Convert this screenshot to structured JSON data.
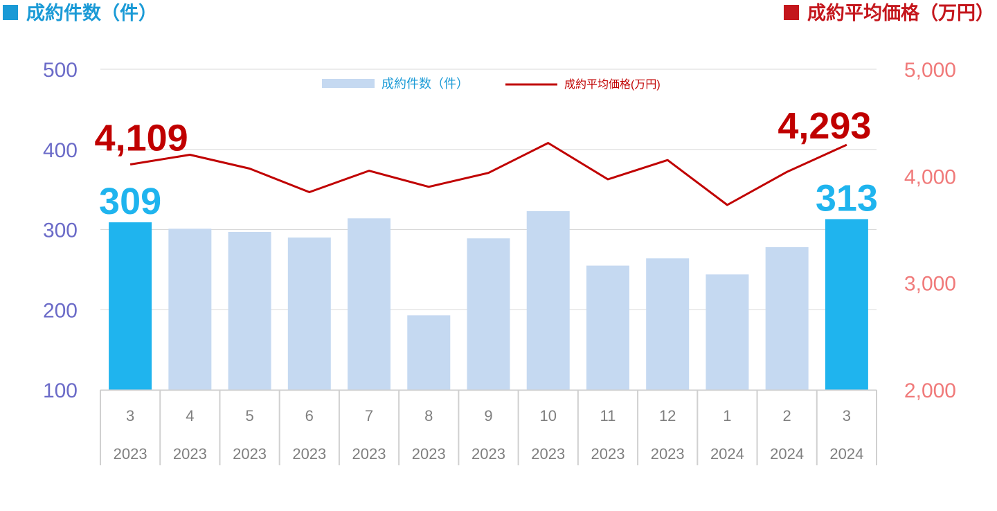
{
  "header_left": "成約件数（件）",
  "header_right": "成約平均価格（万円）",
  "colors": {
    "bar": "#c5d9f1",
    "bar_highlight": "#1fb4ee",
    "line": "#c00000",
    "left_axis_text": "#6b6bc8",
    "right_axis_text": "#f07a7a",
    "grid": "#d9d9d9"
  },
  "chart_data": {
    "type": "bar",
    "legend": {
      "bar_label": "成約件数（件）",
      "line_label": "成約平均価格(万円)",
      "placement": "top-center"
    },
    "categories": [
      {
        "month": "3",
        "year": "2023"
      },
      {
        "month": "4",
        "year": "2023"
      },
      {
        "month": "5",
        "year": "2023"
      },
      {
        "month": "6",
        "year": "2023"
      },
      {
        "month": "7",
        "year": "2023"
      },
      {
        "month": "8",
        "year": "2023"
      },
      {
        "month": "9",
        "year": "2023"
      },
      {
        "month": "10",
        "year": "2023"
      },
      {
        "month": "11",
        "year": "2023"
      },
      {
        "month": "12",
        "year": "2023"
      },
      {
        "month": "1",
        "year": "2024"
      },
      {
        "month": "2",
        "year": "2024"
      },
      {
        "month": "3",
        "year": "2024"
      }
    ],
    "bar_values": [
      309,
      301,
      297,
      290,
      314,
      193,
      289,
      323,
      255,
      264,
      244,
      278,
      313
    ],
    "line_values": [
      4109,
      4200,
      4070,
      3850,
      4050,
      3900,
      4030,
      4310,
      3970,
      4150,
      3730,
      4040,
      4293
    ],
    "highlight_indices": [
      0,
      12
    ],
    "bar_axis": {
      "ylim": [
        100,
        500
      ],
      "ticks": [
        "500",
        "400",
        "300",
        "200",
        "100"
      ]
    },
    "line_axis": {
      "ylim": [
        2000,
        5000
      ],
      "ticks": [
        "5,000",
        "4,000",
        "3,000",
        "2,000"
      ]
    },
    "annotations": {
      "first_bar": "309",
      "last_bar": "313",
      "first_line": "4,109",
      "last_line": "4,293"
    },
    "grid": true
  }
}
